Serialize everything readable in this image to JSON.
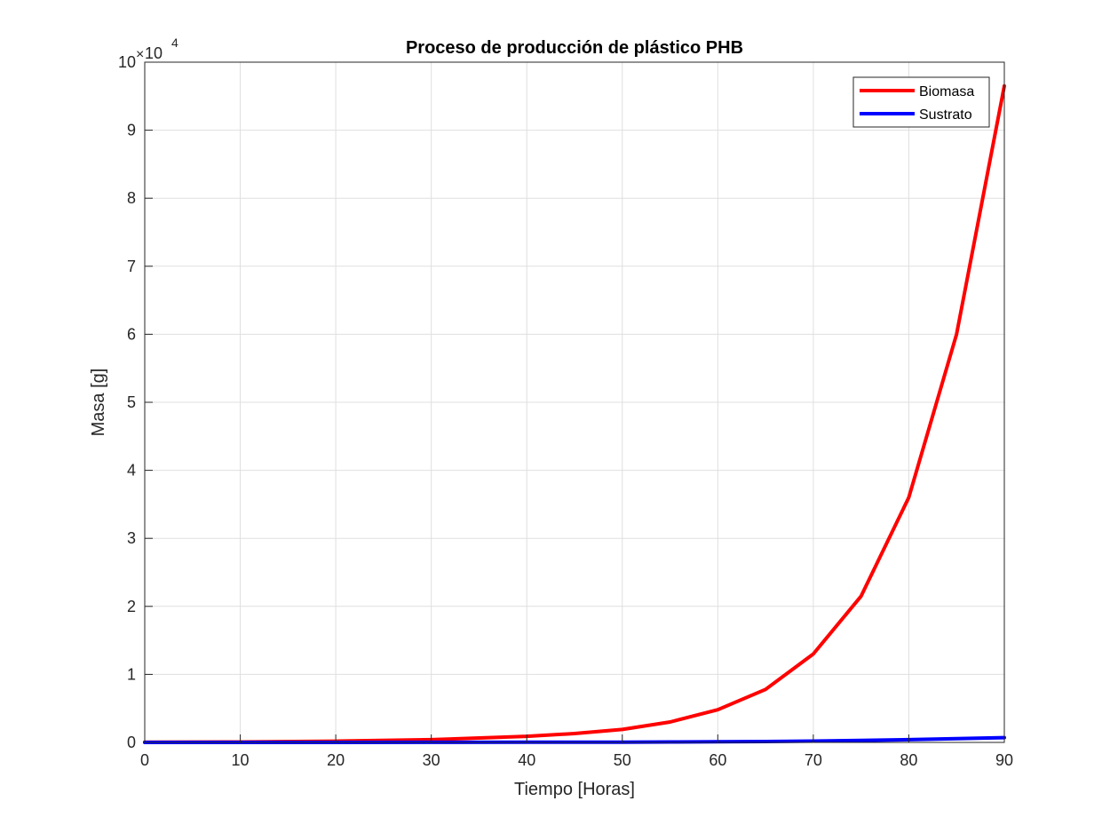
{
  "chart_data": {
    "type": "line",
    "title": "Proceso de producción de plástico PHB",
    "xlabel": "Tiempo [Horas]",
    "ylabel": "Masa [g]",
    "xlim": [
      0,
      90
    ],
    "ylim": [
      0,
      100000
    ],
    "xticks": [
      "0",
      "10",
      "20",
      "30",
      "40",
      "50",
      "60",
      "70",
      "80",
      "90"
    ],
    "yticks": [
      "0",
      "1",
      "2",
      "3",
      "4",
      "5",
      "6",
      "7",
      "8",
      "9",
      "10"
    ],
    "y_multiplier_base": "10",
    "y_multiplier_exp": "4",
    "grid": true,
    "legend_position": "top-right",
    "x": [
      0,
      10,
      20,
      30,
      40,
      45,
      50,
      55,
      60,
      65,
      70,
      75,
      80,
      85,
      90
    ],
    "series": [
      {
        "name": "Biomasa",
        "color": "#ff0000",
        "values": [
          30,
          70,
          180,
          400,
          900,
          1300,
          1900,
          3000,
          4800,
          7800,
          13000,
          21500,
          36000,
          60000,
          96500
        ]
      },
      {
        "name": "Sustrato",
        "color": "#0000ff",
        "values": [
          0,
          0,
          0,
          10,
          20,
          30,
          40,
          60,
          90,
          130,
          200,
          300,
          400,
          550,
          700
        ]
      }
    ]
  }
}
